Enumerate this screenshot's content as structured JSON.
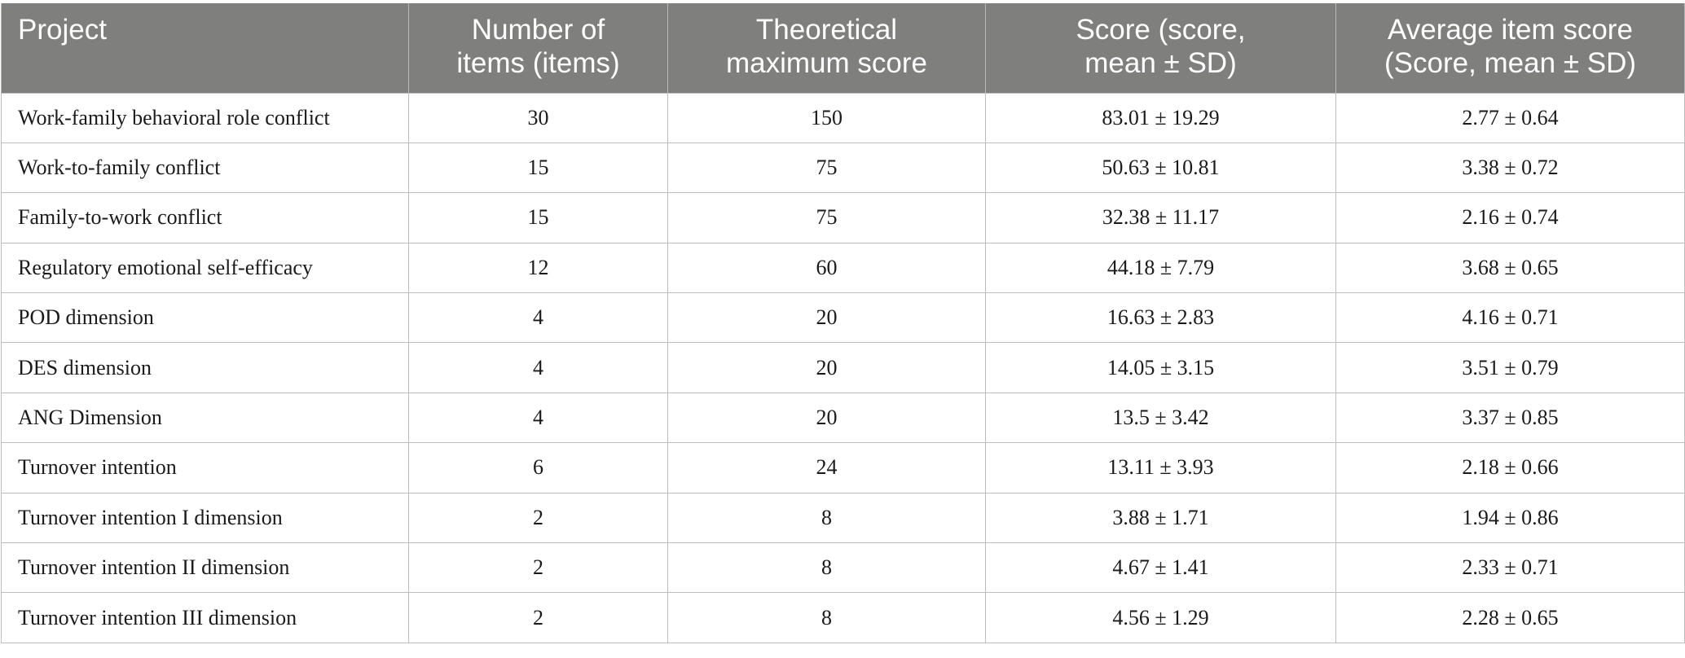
{
  "table": {
    "headers": [
      {
        "lines": [
          "Project"
        ]
      },
      {
        "lines": [
          "Number of",
          "items (items)"
        ]
      },
      {
        "lines": [
          "Theoretical",
          "maximum score"
        ]
      },
      {
        "lines": [
          "Score (score,",
          "mean ± SD)"
        ]
      },
      {
        "lines": [
          "Average item score",
          "(Score, mean ± SD)"
        ]
      }
    ],
    "rows": [
      [
        "Work-family behavioral role conflict",
        "30",
        "150",
        "83.01 ± 19.29",
        "2.77 ± 0.64"
      ],
      [
        "Work-to-family conflict",
        "15",
        "75",
        "50.63 ± 10.81",
        "3.38 ± 0.72"
      ],
      [
        "Family-to-work conflict",
        "15",
        "75",
        "32.38 ± 11.17",
        "2.16 ± 0.74"
      ],
      [
        "Regulatory emotional self-efficacy",
        "12",
        "60",
        "44.18 ± 7.79",
        "3.68 ± 0.65"
      ],
      [
        "POD dimension",
        "4",
        "20",
        "16.63 ± 2.83",
        "4.16 ± 0.71"
      ],
      [
        "DES dimension",
        "4",
        "20",
        "14.05 ± 3.15",
        "3.51 ± 0.79"
      ],
      [
        "ANG Dimension",
        "4",
        "20",
        "13.5 ± 3.42",
        "3.37 ± 0.85"
      ],
      [
        "Turnover intention",
        "6",
        "24",
        "13.11 ± 3.93",
        "2.18 ± 0.66"
      ],
      [
        "Turnover intention I dimension",
        "2",
        "8",
        "3.88 ± 1.71",
        "1.94 ± 0.86"
      ],
      [
        "Turnover intention II dimension",
        "2",
        "8",
        "4.67 ± 1.41",
        "2.33 ± 0.71"
      ],
      [
        "Turnover intention III dimension",
        "2",
        "8",
        "4.56 ± 1.29",
        "2.28 ± 0.65"
      ]
    ]
  },
  "colors": {
    "header_background": "#7f807e",
    "header_text": "#ffffff",
    "grid_line": "#bdbdbd"
  }
}
